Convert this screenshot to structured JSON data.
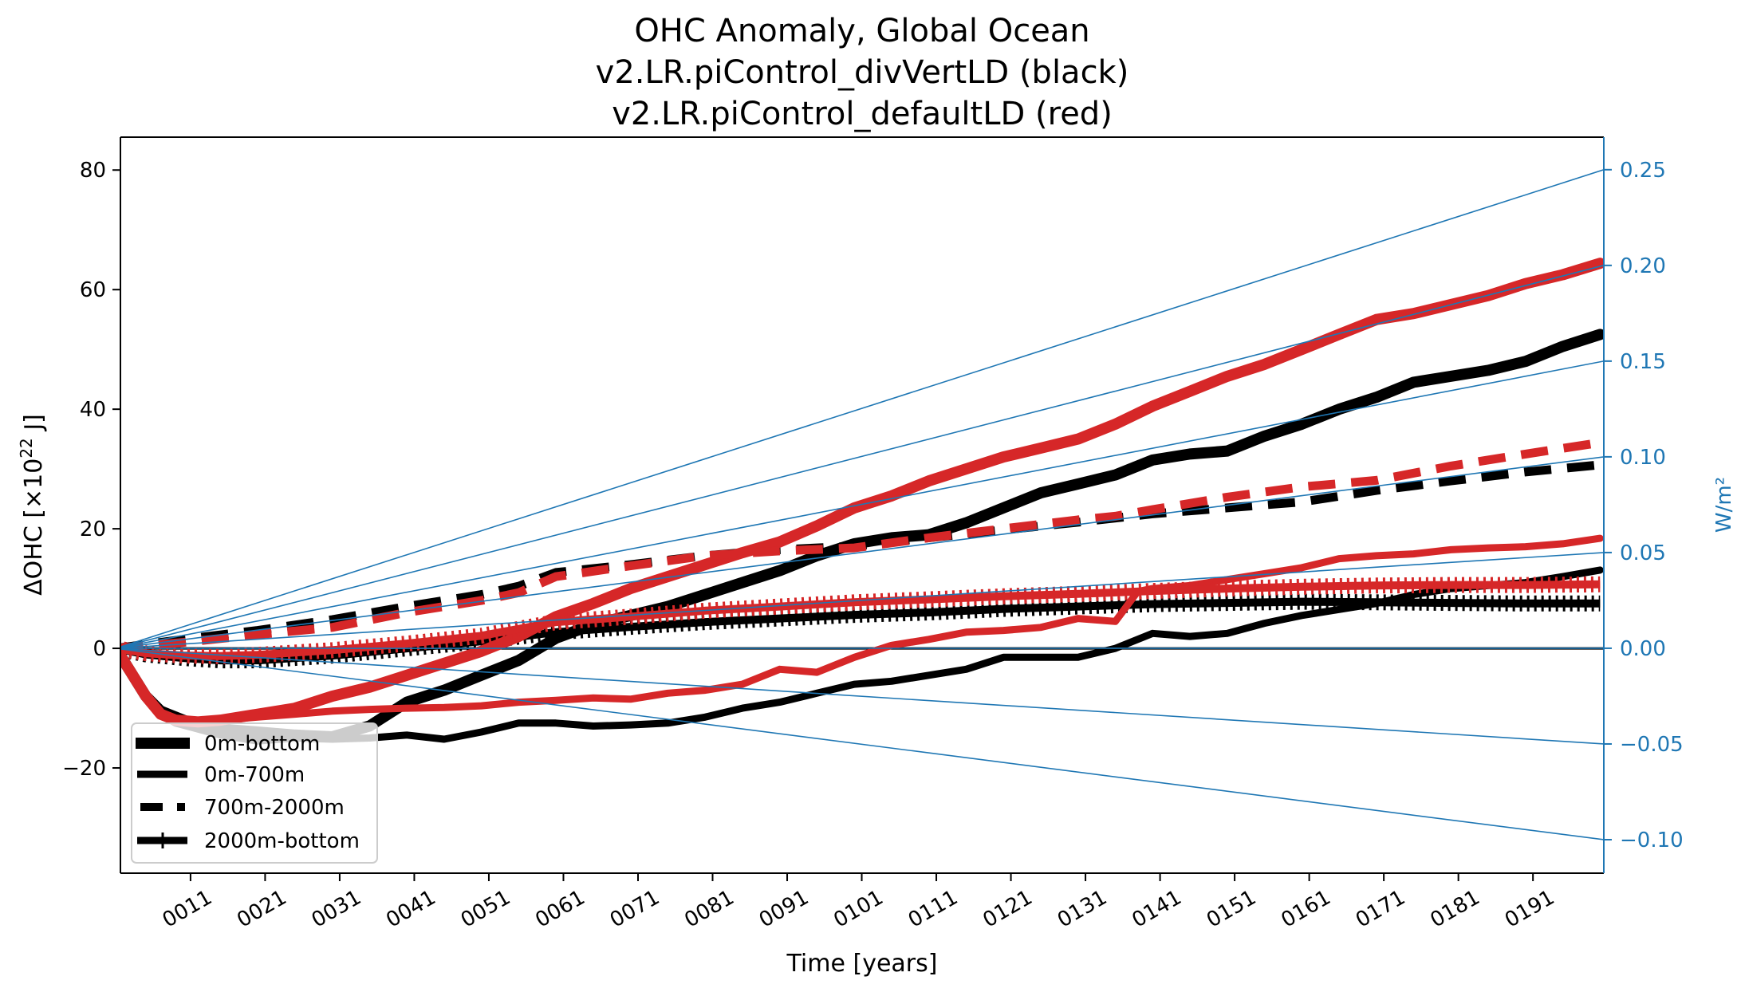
{
  "chart_data": {
    "type": "line",
    "title": [
      "OHC Anomaly, Global Ocean",
      "v2.LR.piControl_divVertLD (black)",
      "v2.LR.piControl_defaultLD (red)"
    ],
    "xlabel": "Time [years]",
    "ylabel": "ΔOHC [×10²² J]",
    "ylabel_parts": {
      "prefix": "ΔOHC [×10",
      "sup": "22",
      "suffix": " J]"
    },
    "ylabel_right": "W/m²",
    "xlim": [
      1.6,
      200.5
    ],
    "ylim": [
      -37.6,
      85.5
    ],
    "ylim_right": [
      -0.1175,
      0.267
    ],
    "grid": false,
    "x_ticks": [
      11,
      21,
      31,
      41,
      51,
      61,
      71,
      81,
      91,
      101,
      111,
      121,
      131,
      141,
      151,
      161,
      171,
      181,
      191
    ],
    "x_tick_labels": [
      "0011",
      "0021",
      "0031",
      "0041",
      "0051",
      "0061",
      "0071",
      "0081",
      "0091",
      "0101",
      "0111",
      "0121",
      "0131",
      "0141",
      "0151",
      "0161",
      "0171",
      "0181",
      "0191"
    ],
    "y_ticks": [
      80,
      60,
      40,
      20,
      0,
      -20
    ],
    "y_tick_labels": [
      "80",
      "60",
      "40",
      "20",
      "0",
      "−20"
    ],
    "y_ticks_right": [
      0.25,
      0.2,
      0.15,
      0.1,
      0.05,
      0.0,
      -0.05,
      -0.1
    ],
    "y_tick_labels_right": [
      "0.25",
      "0.20",
      "0.15",
      "0.10",
      "0.05",
      "0.00",
      "−0.05",
      "−0.10"
    ],
    "reference_lines_wm2": [
      0.25,
      0.2,
      0.15,
      0.1,
      0.05,
      0.0,
      -0.05,
      -0.1
    ],
    "reference_color": "#1f77b4",
    "legend": {
      "placement": "lower-left",
      "entries": [
        {
          "label": "0m-bottom",
          "style": "thick"
        },
        {
          "label": "0m-700m",
          "style": "solid"
        },
        {
          "label": "700m-2000m",
          "style": "dashed"
        },
        {
          "label": "2000m-bottom",
          "style": "plus-marker"
        }
      ]
    },
    "colors": {
      "divVertLD": "#000000",
      "defaultLD": "#d62728"
    },
    "series": [
      {
        "name": "divVertLD 0m-bottom",
        "run": "divVertLD",
        "layer": "0m-bottom",
        "style": "thick",
        "x": [
          1,
          3,
          5,
          7,
          9,
          12,
          15,
          20,
          25,
          30,
          35,
          40,
          45,
          50,
          55,
          60,
          65,
          70,
          75,
          80,
          85,
          90,
          95,
          100,
          105,
          110,
          115,
          120,
          125,
          130,
          135,
          140,
          145,
          150,
          155,
          160,
          165,
          170,
          175,
          180,
          185,
          190,
          195,
          200
        ],
        "values": [
          0,
          -4,
          -8,
          -10.5,
          -11.5,
          -13,
          -13.5,
          -14,
          -14.5,
          -14.8,
          -13,
          -9,
          -7,
          -4.5,
          -2,
          1.7,
          4,
          5.5,
          7,
          9,
          11,
          13,
          15.5,
          17.5,
          18.5,
          19,
          21,
          23.5,
          26,
          27.5,
          29,
          31.5,
          32.5,
          33,
          35.5,
          37.5,
          40,
          42,
          44.5,
          45.5,
          46.5,
          48,
          50.5,
          52.5
        ]
      },
      {
        "name": "divVertLD 0m-700m",
        "run": "divVertLD",
        "layer": "0m-700m",
        "style": "solid",
        "x": [
          1,
          3,
          5,
          7,
          9,
          12,
          15,
          20,
          25,
          30,
          35,
          40,
          45,
          50,
          55,
          60,
          65,
          70,
          75,
          80,
          85,
          90,
          95,
          100,
          105,
          110,
          115,
          120,
          125,
          130,
          135,
          140,
          145,
          150,
          155,
          160,
          165,
          170,
          175,
          180,
          185,
          190,
          195,
          200
        ],
        "values": [
          0,
          -4,
          -8,
          -11,
          -12.5,
          -13.5,
          -14.5,
          -15.5,
          -15,
          -15.2,
          -15,
          -14.5,
          -15.2,
          -14,
          -12.5,
          -12.5,
          -13,
          -12.8,
          -12.5,
          -11.5,
          -10,
          -9,
          -7.5,
          -6,
          -5.5,
          -4.5,
          -3.5,
          -1.5,
          -1.5,
          -1.5,
          0,
          2.5,
          2,
          2.5,
          4.2,
          5.5,
          6.5,
          7.5,
          9,
          10,
          10.5,
          11,
          12,
          13.1
        ]
      },
      {
        "name": "divVertLD 700m-2000m",
        "run": "divVertLD",
        "layer": "700m-2000m",
        "style": "dashed",
        "x": [
          1,
          10,
          20,
          30,
          40,
          50,
          55,
          60,
          70,
          80,
          90,
          100,
          110,
          120,
          130,
          140,
          150,
          160,
          170,
          180,
          190,
          200
        ],
        "values": [
          0,
          1.5,
          3,
          4.8,
          7,
          9,
          10.4,
          12.7,
          14,
          15.5,
          16.5,
          17.1,
          18.5,
          19.8,
          21.1,
          22.5,
          23.5,
          24.5,
          26.4,
          28,
          29.5,
          30.7
        ]
      },
      {
        "name": "divVertLD 2000m-bottom",
        "run": "divVertLD",
        "layer": "2000m-bottom",
        "style": "plus-marker",
        "x": [
          1,
          5,
          10,
          15,
          20,
          30,
          40,
          50,
          60,
          70,
          80,
          90,
          100,
          110,
          120,
          130,
          140,
          150,
          160,
          170,
          180,
          190,
          200
        ],
        "values": [
          0,
          -1,
          -1.6,
          -2,
          -2,
          -1.2,
          0,
          1.2,
          2.7,
          3.6,
          4.4,
          5,
          5.6,
          6,
          6.6,
          7,
          7.4,
          7.6,
          7.8,
          7.7,
          7.6,
          7.5,
          7.5
        ]
      },
      {
        "name": "defaultLD 0m-bottom",
        "run": "defaultLD",
        "layer": "0m-bottom",
        "style": "thick",
        "x": [
          1,
          3,
          5,
          7,
          9,
          12,
          15,
          20,
          25,
          30,
          35,
          40,
          45,
          50,
          55,
          60,
          65,
          70,
          75,
          80,
          85,
          90,
          95,
          100,
          105,
          110,
          115,
          120,
          125,
          130,
          135,
          140,
          145,
          150,
          155,
          160,
          165,
          170,
          175,
          180,
          185,
          190,
          195,
          200
        ],
        "values": [
          0,
          -4,
          -8,
          -11,
          -12,
          -12.3,
          -12,
          -11,
          -10,
          -8,
          -6.5,
          -4.5,
          -2.5,
          -0.5,
          2,
          5.3,
          7.5,
          10,
          12,
          14,
          16,
          17.8,
          20.5,
          23.5,
          25.5,
          28,
          30,
          32,
          33.5,
          35,
          37.5,
          40.5,
          43,
          45.5,
          47.5,
          50,
          52.5,
          55,
          56,
          57.5,
          59,
          61,
          62.5,
          64.4
        ]
      },
      {
        "name": "defaultLD 0m-700m",
        "run": "defaultLD",
        "layer": "0m-700m",
        "style": "solid",
        "x": [
          1,
          3,
          5,
          7,
          9,
          12,
          15,
          20,
          25,
          30,
          35,
          40,
          45,
          50,
          55,
          60,
          65,
          70,
          75,
          80,
          85,
          90,
          95,
          100,
          105,
          110,
          115,
          120,
          125,
          130,
          135,
          138,
          140,
          145,
          150,
          155,
          160,
          165,
          170,
          175,
          180,
          185,
          190,
          195,
          200
        ],
        "values": [
          0,
          -4,
          -8,
          -11,
          -12,
          -12.3,
          -12,
          -11.5,
          -11,
          -10.5,
          -10.2,
          -10,
          -9.9,
          -9.6,
          -9,
          -8.7,
          -8.3,
          -8.5,
          -7.5,
          -7,
          -6,
          -3.5,
          -4,
          -1.5,
          0.5,
          1.5,
          2.7,
          3,
          3.5,
          5,
          4.5,
          9.5,
          10,
          10.5,
          11.5,
          12.5,
          13.5,
          15,
          15.5,
          15.8,
          16.5,
          16.8,
          17,
          17.5,
          18.4
        ]
      },
      {
        "name": "defaultLD 700m-2000m",
        "run": "defaultLD",
        "layer": "700m-2000m",
        "style": "dashed",
        "x": [
          1,
          10,
          20,
          30,
          40,
          50,
          55,
          60,
          70,
          80,
          90,
          100,
          110,
          120,
          130,
          135,
          140,
          150,
          160,
          170,
          180,
          190,
          200
        ],
        "values": [
          0,
          1,
          2.3,
          3.5,
          6,
          8,
          9.3,
          12,
          13.8,
          15.5,
          16.3,
          16.8,
          18.5,
          20,
          21.5,
          22.1,
          23.2,
          25.3,
          27,
          28.1,
          30.5,
          32.5,
          34.4
        ]
      },
      {
        "name": "defaultLD 2000m-bottom",
        "run": "defaultLD",
        "layer": "2000m-bottom",
        "style": "plus-marker",
        "x": [
          1,
          5,
          10,
          15,
          20,
          30,
          40,
          50,
          60,
          70,
          80,
          90,
          100,
          110,
          120,
          130,
          140,
          150,
          160,
          170,
          180,
          190,
          200
        ],
        "values": [
          0,
          -0.8,
          -1.2,
          -1.3,
          -1.1,
          -0.3,
          0.8,
          2.1,
          4.4,
          5.3,
          6.3,
          7,
          7.7,
          8.2,
          8.7,
          9.1,
          9.6,
          10,
          10.3,
          10.5,
          10.6,
          10.6,
          10.7
        ]
      }
    ]
  }
}
